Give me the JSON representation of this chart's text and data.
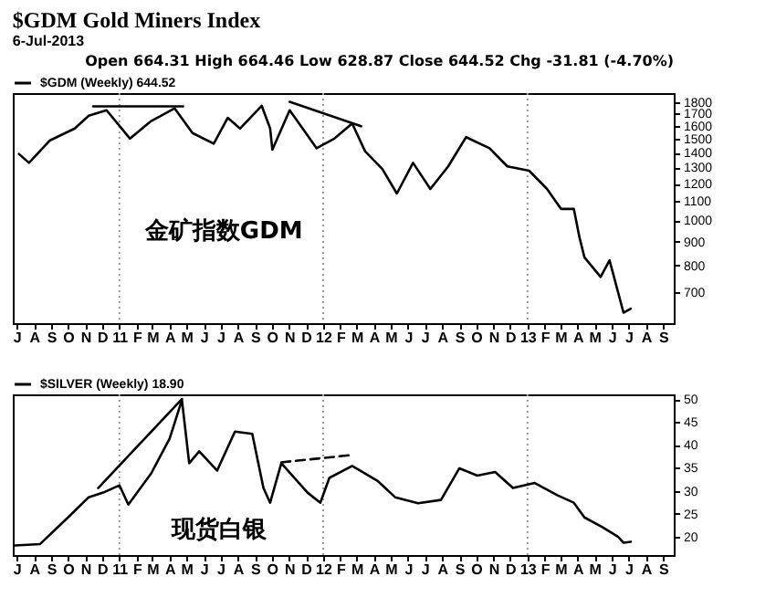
{
  "chart_data": [
    {
      "type": "line",
      "title": "$GDM Gold Miners Index",
      "subtitle": "6-Jul-2013",
      "annotations": [
        "Open 664.31 High 664.46 Low 628.87 Close 644.52 Chg -31.81 (-4.70%)",
        "金矿指数GDM"
      ],
      "log": true,
      "legend": "top left",
      "xlim": [
        "2010-06-24",
        "2013-09-20"
      ],
      "ylim": [
        600,
        1880
      ],
      "yticks": [
        700,
        800,
        900,
        1000,
        1100,
        1200,
        1300,
        1400,
        1500,
        1600,
        1700,
        1800
      ],
      "xticks": [
        {
          "value": "2010-07-01",
          "label": "J"
        },
        {
          "value": "2010-08-01",
          "label": "A"
        },
        {
          "value": "2010-09-01",
          "label": "S"
        },
        {
          "value": "2010-10-01",
          "label": "O"
        },
        {
          "value": "2010-11-01",
          "label": "N"
        },
        {
          "value": "2010-12-01",
          "label": "D"
        },
        {
          "value": "2011-01-01",
          "label": "11"
        },
        {
          "value": "2011-02-01",
          "label": "F"
        },
        {
          "value": "2011-03-01",
          "label": "M"
        },
        {
          "value": "2011-04-01",
          "label": "A"
        },
        {
          "value": "2011-05-01",
          "label": "M"
        },
        {
          "value": "2011-06-01",
          "label": "J"
        },
        {
          "value": "2011-07-01",
          "label": "J"
        },
        {
          "value": "2011-08-01",
          "label": "A"
        },
        {
          "value": "2011-09-01",
          "label": "S"
        },
        {
          "value": "2011-10-01",
          "label": "O"
        },
        {
          "value": "2011-11-01",
          "label": "N"
        },
        {
          "value": "2011-12-01",
          "label": "D"
        },
        {
          "value": "2012-01-01",
          "label": "12"
        },
        {
          "value": "2012-02-01",
          "label": "F"
        },
        {
          "value": "2012-03-01",
          "label": "M"
        },
        {
          "value": "2012-04-01",
          "label": "A"
        },
        {
          "value": "2012-05-01",
          "label": "M"
        },
        {
          "value": "2012-06-01",
          "label": "J"
        },
        {
          "value": "2012-07-01",
          "label": "J"
        },
        {
          "value": "2012-08-01",
          "label": "A"
        },
        {
          "value": "2012-09-01",
          "label": "S"
        },
        {
          "value": "2012-10-01",
          "label": "O"
        },
        {
          "value": "2012-11-01",
          "label": "N"
        },
        {
          "value": "2012-12-01",
          "label": "D"
        },
        {
          "value": "2013-01-01",
          "label": "13"
        },
        {
          "value": "2013-02-01",
          "label": "F"
        },
        {
          "value": "2013-03-01",
          "label": "M"
        },
        {
          "value": "2013-04-01",
          "label": "A"
        },
        {
          "value": "2013-05-01",
          "label": "M"
        },
        {
          "value": "2013-06-01",
          "label": "J"
        },
        {
          "value": "2013-07-01",
          "label": "J"
        },
        {
          "value": "2013-08-01",
          "label": "A"
        },
        {
          "value": "2013-09-01",
          "label": "S"
        }
      ],
      "ref_lines": [
        {
          "axis": "x",
          "value": "2011-01-01",
          "color": "#999999",
          "line_style": "dotted"
        },
        {
          "axis": "x",
          "value": "2012-01-01",
          "color": "#999999",
          "line_style": "dotted"
        },
        {
          "axis": "x",
          "value": "2013-01-01",
          "color": "#999999",
          "line_style": "dotted"
        }
      ],
      "series": [
        {
          "name": "$GDM (Weekly) 644.52",
          "color": "#000000",
          "x": [
            "2010-07-05",
            "2010-07-23",
            "2010-08-29",
            "2010-10-13",
            "2010-11-07",
            "2010-12-09",
            "2011-01-20",
            "2011-02-27",
            "2011-04-10",
            "2011-05-12",
            "2011-06-19",
            "2011-07-14",
            "2011-08-05",
            "2011-09-13",
            "2011-09-28",
            "2011-10-02",
            "2011-11-02",
            "2011-12-01",
            "2011-12-20",
            "2012-01-21",
            "2012-02-22",
            "2012-03-16",
            "2012-04-16",
            "2012-05-12",
            "2012-06-10",
            "2012-07-11",
            "2012-08-12",
            "2012-09-13",
            "2012-10-25",
            "2012-11-26",
            "2013-01-04",
            "2013-02-05",
            "2013-03-02",
            "2013-03-25",
            "2013-04-04",
            "2013-04-13",
            "2013-05-12",
            "2013-05-28",
            "2013-06-22",
            "2013-07-05"
          ],
          "values": [
            1390,
            1330,
            1485,
            1577,
            1680,
            1727,
            1500,
            1637,
            1743,
            1542,
            1463,
            1663,
            1577,
            1765,
            1577,
            1420,
            1727,
            1542,
            1430,
            1500,
            1617,
            1409,
            1290,
            1142,
            1330,
            1168,
            1307,
            1511,
            1430,
            1307,
            1279,
            1168,
            1058,
            1058,
            920,
            832,
            755,
            820,
            632,
            645
          ]
        },
        {
          "color": "#000000",
          "x": [
            "2010-11-15",
            "2011-04-25"
          ],
          "values": [
            1760,
            1760
          ]
        },
        {
          "color": "#000000",
          "x": [
            "2011-11-02",
            "2012-03-09"
          ],
          "values": [
            1800,
            1595
          ]
        }
      ]
    },
    {
      "type": "line",
      "annotations": [
        "现货白银"
      ],
      "legend": "top left",
      "xlim": [
        "2010-06-24",
        "2013-09-20"
      ],
      "ylim": [
        16,
        51
      ],
      "yticks": [
        20,
        25,
        30,
        35,
        40,
        45,
        50
      ],
      "xticks": [
        {
          "value": "2010-07-01",
          "label": "J"
        },
        {
          "value": "2010-08-01",
          "label": "A"
        },
        {
          "value": "2010-09-01",
          "label": "S"
        },
        {
          "value": "2010-10-01",
          "label": "O"
        },
        {
          "value": "2010-11-01",
          "label": "N"
        },
        {
          "value": "2010-12-01",
          "label": "D"
        },
        {
          "value": "2011-01-01",
          "label": "11"
        },
        {
          "value": "2011-02-01",
          "label": "F"
        },
        {
          "value": "2011-03-01",
          "label": "M"
        },
        {
          "value": "2011-04-01",
          "label": "A"
        },
        {
          "value": "2011-05-01",
          "label": "M"
        },
        {
          "value": "2011-06-01",
          "label": "J"
        },
        {
          "value": "2011-07-01",
          "label": "J"
        },
        {
          "value": "2011-08-01",
          "label": "A"
        },
        {
          "value": "2011-09-01",
          "label": "S"
        },
        {
          "value": "2011-10-01",
          "label": "O"
        },
        {
          "value": "2011-11-01",
          "label": "N"
        },
        {
          "value": "2011-12-01",
          "label": "D"
        },
        {
          "value": "2012-01-01",
          "label": "12"
        },
        {
          "value": "2012-02-01",
          "label": "F"
        },
        {
          "value": "2012-03-01",
          "label": "M"
        },
        {
          "value": "2012-04-01",
          "label": "A"
        },
        {
          "value": "2012-05-01",
          "label": "M"
        },
        {
          "value": "2012-06-01",
          "label": "J"
        },
        {
          "value": "2012-07-01",
          "label": "J"
        },
        {
          "value": "2012-08-01",
          "label": "A"
        },
        {
          "value": "2012-09-01",
          "label": "S"
        },
        {
          "value": "2012-10-01",
          "label": "O"
        },
        {
          "value": "2012-11-01",
          "label": "N"
        },
        {
          "value": "2012-12-01",
          "label": "D"
        },
        {
          "value": "2013-01-01",
          "label": "13"
        },
        {
          "value": "2013-02-01",
          "label": "F"
        },
        {
          "value": "2013-03-01",
          "label": "M"
        },
        {
          "value": "2013-04-01",
          "label": "A"
        },
        {
          "value": "2013-05-01",
          "label": "M"
        },
        {
          "value": "2013-06-01",
          "label": "J"
        },
        {
          "value": "2013-07-01",
          "label": "J"
        },
        {
          "value": "2013-08-01",
          "label": "A"
        },
        {
          "value": "2013-09-01",
          "label": "S"
        }
      ],
      "ref_lines": [
        {
          "axis": "x",
          "value": "2011-01-01",
          "color": "#999999",
          "line_style": "dotted"
        },
        {
          "axis": "x",
          "value": "2012-01-01",
          "color": "#999999",
          "line_style": "dotted"
        },
        {
          "axis": "x",
          "value": "2013-01-01",
          "color": "#999999",
          "line_style": "dotted"
        }
      ],
      "series": [
        {
          "name": "$SILVER (Weekly) 18.90",
          "color": "#000000",
          "x": [
            "2010-06-28",
            "2010-08-12",
            "2010-10-01",
            "2010-11-07",
            "2010-12-03",
            "2011-01-01",
            "2011-01-17",
            "2011-02-27",
            "2011-04-01",
            "2011-04-23",
            "2011-05-06",
            "2011-05-24",
            "2011-06-25",
            "2011-07-27",
            "2011-08-27",
            "2011-09-16",
            "2011-09-28",
            "2011-10-18",
            "2011-12-04",
            "2011-12-27",
            "2012-01-12",
            "2012-02-22",
            "2012-04-07",
            "2012-05-09",
            "2012-06-19",
            "2012-07-30",
            "2012-09-01",
            "2012-10-03",
            "2012-11-04",
            "2012-12-06",
            "2013-01-14",
            "2013-02-24",
            "2013-03-25",
            "2013-04-13",
            "2013-05-15",
            "2013-06-12",
            "2013-06-22",
            "2013-07-05"
          ],
          "values": [
            18.1,
            18.4,
            24.2,
            28.6,
            29.6,
            31.2,
            27.0,
            33.8,
            41.4,
            49.8,
            36.0,
            38.6,
            34.4,
            42.9,
            42.4,
            30.6,
            27.4,
            36.0,
            29.6,
            27.4,
            32.8,
            35.4,
            32.2,
            28.6,
            27.3,
            28.0,
            34.9,
            33.3,
            34.1,
            30.6,
            31.7,
            29.0,
            27.4,
            24.2,
            22.1,
            20.0,
            18.7,
            18.9
          ]
        },
        {
          "color": "#000000",
          "x": [
            "2010-11-24",
            "2011-04-23"
          ],
          "values": [
            30.6,
            50.0
          ]
        },
        {
          "color": "#000000",
          "line_style": "dashed",
          "x": [
            "2011-10-18",
            "2012-02-22"
          ],
          "values": [
            36.2,
            37.8
          ]
        }
      ]
    }
  ]
}
